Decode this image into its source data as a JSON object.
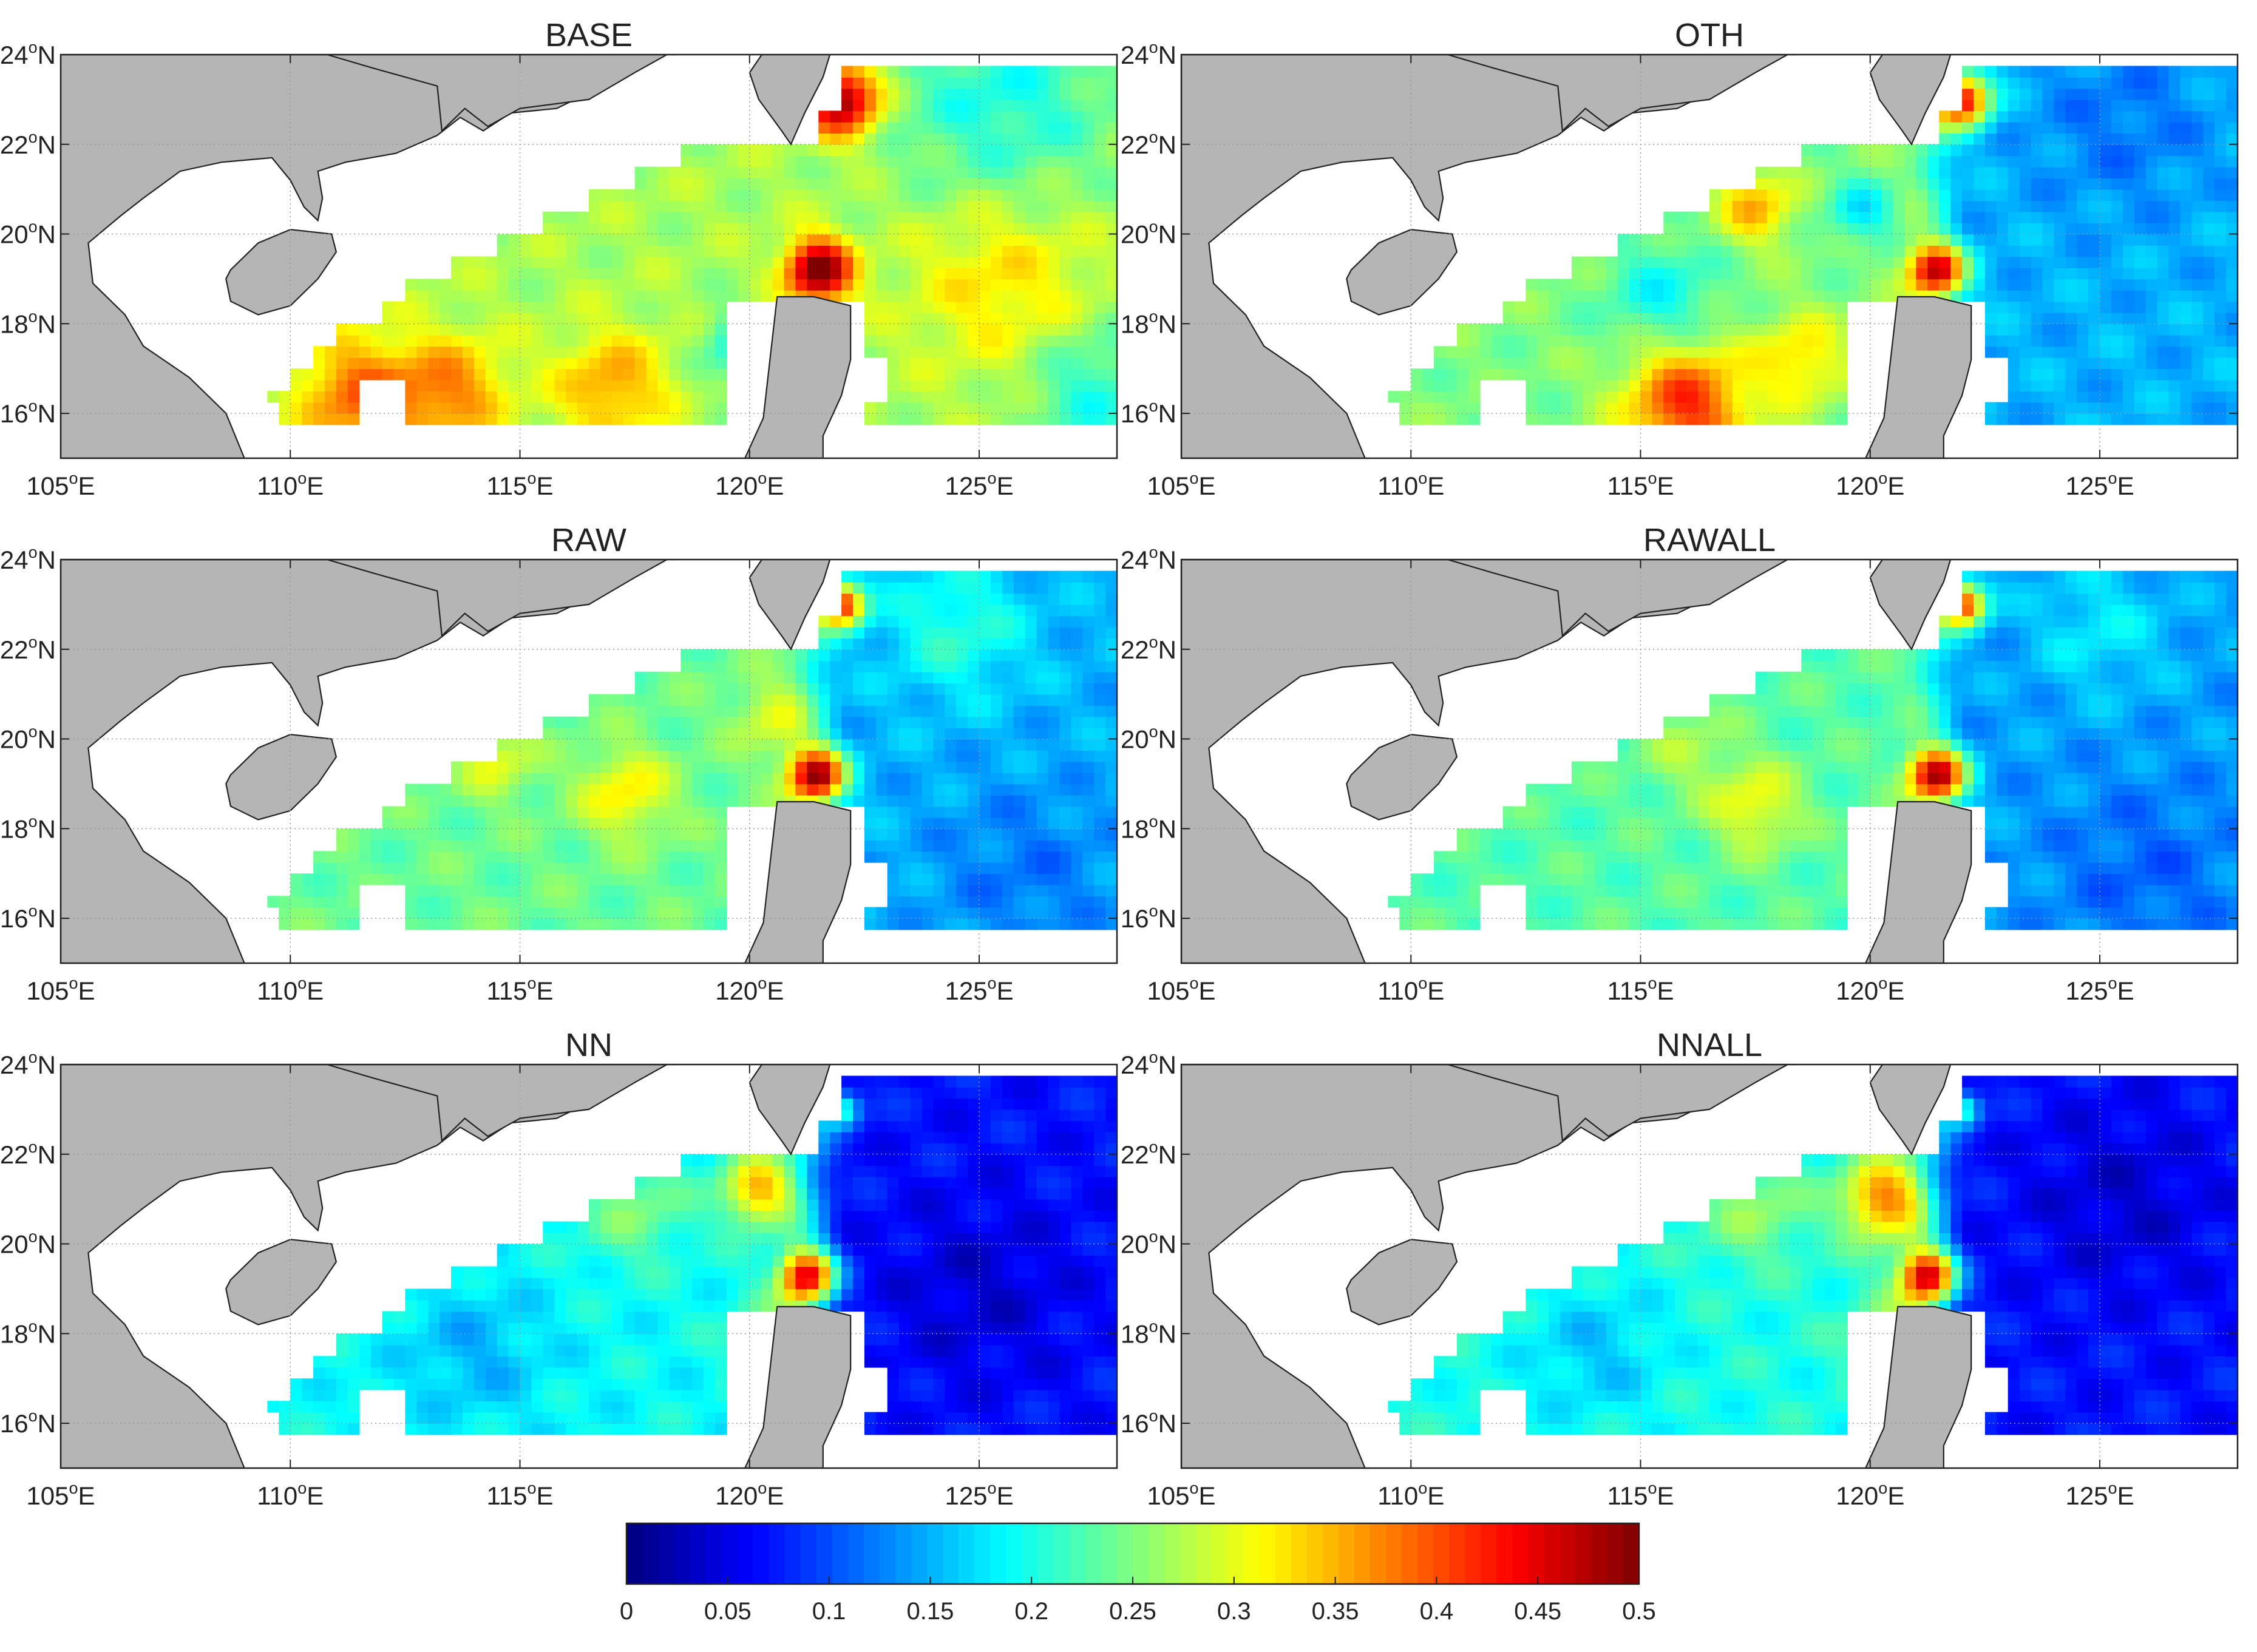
{
  "colors": {
    "land": "#b5b5b5",
    "coast": "#222222",
    "sea_nodata": "#ffffff",
    "grid": "#999999",
    "frame": "#222222"
  },
  "colormap": {
    "name": "jet",
    "min": 0,
    "max": 0.5,
    "ticks": [
      0,
      0.05,
      0.1,
      0.15,
      0.2,
      0.25,
      0.3,
      0.35,
      0.4,
      0.45,
      0.5
    ],
    "tick_labels": [
      "0",
      "0.05",
      "0.1",
      "0.15",
      "0.2",
      "0.25",
      "0.3",
      "0.35",
      "0.4",
      "0.45",
      "0.5"
    ]
  },
  "chart_data": [
    {
      "type": "heatmap",
      "title": "BASE",
      "xlim": [
        105,
        128
      ],
      "ylim": [
        15,
        24
      ],
      "xticks": [
        105,
        110,
        115,
        120,
        125
      ],
      "yticks": [
        16,
        18,
        20,
        22,
        24
      ],
      "xtick_labels": [
        [
          "105",
          "o",
          "E"
        ],
        [
          "110",
          "o",
          "E"
        ],
        [
          "115",
          "o",
          "E"
        ],
        [
          "120",
          "o",
          "E"
        ],
        [
          "125",
          "o",
          "E"
        ]
      ],
      "ytick_labels": [
        [
          "16",
          "o",
          "N"
        ],
        [
          "18",
          "o",
          "N"
        ],
        [
          "20",
          "o",
          "N"
        ],
        [
          "22",
          "o",
          "N"
        ],
        [
          "24",
          "o",
          "N"
        ]
      ],
      "grid": true,
      "field": {
        "base": 0.27,
        "east_base": 0.27,
        "blobs": [
          {
            "lon": 111.5,
            "lat": 16.4,
            "r": 1.3,
            "v": 0.12
          },
          {
            "lon": 113.5,
            "lat": 16.5,
            "r": 1.2,
            "v": 0.1
          },
          {
            "lon": 117.0,
            "lat": 16.6,
            "r": 1.2,
            "v": 0.09
          },
          {
            "lon": 121.5,
            "lat": 19.2,
            "r": 0.7,
            "v": 0.25
          },
          {
            "lon": 122.0,
            "lat": 23.0,
            "r": 0.8,
            "v": 0.23
          },
          {
            "lon": 125.5,
            "lat": 19.0,
            "r": 2.0,
            "v": 0.06
          },
          {
            "lon": 127.5,
            "lat": 16.5,
            "r": 1.5,
            "v": -0.07
          },
          {
            "lon": 125.5,
            "lat": 23.0,
            "r": 2.5,
            "v": -0.07
          },
          {
            "lon": 119.8,
            "lat": 17.5,
            "r": 0.8,
            "v": -0.08
          }
        ]
      }
    },
    {
      "type": "heatmap",
      "title": "OTH",
      "xlim": [
        105,
        128
      ],
      "ylim": [
        15,
        24
      ],
      "xticks": [
        105,
        110,
        115,
        120,
        125
      ],
      "yticks": [
        16,
        18,
        20,
        22,
        24
      ],
      "xtick_labels": [
        [
          "105",
          "o",
          "E"
        ],
        [
          "110",
          "o",
          "E"
        ],
        [
          "115",
          "o",
          "E"
        ],
        [
          "120",
          "o",
          "E"
        ],
        [
          "125",
          "o",
          "E"
        ]
      ],
      "ytick_labels": [
        [
          "16",
          "o",
          "N"
        ],
        [
          "18",
          "o",
          "N"
        ],
        [
          "20",
          "o",
          "N"
        ],
        [
          "22",
          "o",
          "N"
        ],
        [
          "24",
          "o",
          "N"
        ]
      ],
      "grid": true,
      "field": {
        "base": 0.25,
        "east_base": 0.15,
        "blobs": [
          {
            "lon": 116.0,
            "lat": 16.2,
            "r": 1.3,
            "v": 0.17
          },
          {
            "lon": 118.5,
            "lat": 17.2,
            "r": 1.0,
            "v": 0.08
          },
          {
            "lon": 117.5,
            "lat": 20.6,
            "r": 0.8,
            "v": 0.1
          },
          {
            "lon": 115.5,
            "lat": 18.6,
            "r": 1.2,
            "v": -0.06
          },
          {
            "lon": 121.5,
            "lat": 19.2,
            "r": 0.6,
            "v": 0.27
          },
          {
            "lon": 122.0,
            "lat": 23.0,
            "r": 0.6,
            "v": 0.3
          },
          {
            "lon": 119.8,
            "lat": 20.5,
            "r": 0.7,
            "v": -0.07
          },
          {
            "lon": 125.5,
            "lat": 22.5,
            "r": 2.0,
            "v": -0.03
          }
        ]
      }
    },
    {
      "type": "heatmap",
      "title": "RAW",
      "xlim": [
        105,
        128
      ],
      "ylim": [
        15,
        24
      ],
      "xticks": [
        105,
        110,
        115,
        120,
        125
      ],
      "yticks": [
        16,
        18,
        20,
        22,
        24
      ],
      "xtick_labels": [
        [
          "105",
          "o",
          "E"
        ],
        [
          "110",
          "o",
          "E"
        ],
        [
          "115",
          "o",
          "E"
        ],
        [
          "120",
          "o",
          "E"
        ],
        [
          "125",
          "o",
          "E"
        ]
      ],
      "ytick_labels": [
        [
          "16",
          "o",
          "N"
        ],
        [
          "18",
          "o",
          "N"
        ],
        [
          "20",
          "o",
          "N"
        ],
        [
          "22",
          "o",
          "N"
        ],
        [
          "24",
          "o",
          "N"
        ]
      ],
      "grid": true,
      "field": {
        "base": 0.24,
        "east_base": 0.15,
        "blobs": [
          {
            "lon": 117.3,
            "lat": 18.8,
            "r": 1.0,
            "v": 0.08
          },
          {
            "lon": 114.5,
            "lat": 19.5,
            "r": 0.8,
            "v": 0.06
          },
          {
            "lon": 120.5,
            "lat": 20.5,
            "r": 0.8,
            "v": 0.06
          },
          {
            "lon": 121.5,
            "lat": 19.2,
            "r": 0.6,
            "v": 0.3
          },
          {
            "lon": 122.0,
            "lat": 23.0,
            "r": 0.5,
            "v": 0.28
          },
          {
            "lon": 121.0,
            "lat": 17.0,
            "r": 0.5,
            "v": 0.18
          },
          {
            "lon": 124.5,
            "lat": 22.5,
            "r": 1.5,
            "v": 0.06
          },
          {
            "lon": 126.0,
            "lat": 17.0,
            "r": 2.0,
            "v": -0.03
          }
        ]
      }
    },
    {
      "type": "heatmap",
      "title": "RAWALL",
      "xlim": [
        105,
        128
      ],
      "ylim": [
        15,
        24
      ],
      "xticks": [
        105,
        110,
        115,
        120,
        125
      ],
      "yticks": [
        16,
        18,
        20,
        22,
        24
      ],
      "xtick_labels": [
        [
          "105",
          "o",
          "E"
        ],
        [
          "110",
          "o",
          "E"
        ],
        [
          "115",
          "o",
          "E"
        ],
        [
          "120",
          "o",
          "E"
        ],
        [
          "125",
          "o",
          "E"
        ]
      ],
      "ytick_labels": [
        [
          "16",
          "o",
          "N"
        ],
        [
          "18",
          "o",
          "N"
        ],
        [
          "20",
          "o",
          "N"
        ],
        [
          "22",
          "o",
          "N"
        ],
        [
          "24",
          "o",
          "N"
        ]
      ],
      "grid": true,
      "field": {
        "base": 0.23,
        "east_base": 0.14,
        "blobs": [
          {
            "lon": 117.5,
            "lat": 18.5,
            "r": 1.0,
            "v": 0.08
          },
          {
            "lon": 116.0,
            "lat": 19.8,
            "r": 1.0,
            "v": 0.04
          },
          {
            "lon": 121.5,
            "lat": 19.2,
            "r": 0.6,
            "v": 0.3
          },
          {
            "lon": 122.0,
            "lat": 23.0,
            "r": 0.5,
            "v": 0.28
          },
          {
            "lon": 121.0,
            "lat": 17.0,
            "r": 0.5,
            "v": 0.17
          },
          {
            "lon": 125.0,
            "lat": 22.5,
            "r": 1.5,
            "v": 0.04
          },
          {
            "lon": 126.0,
            "lat": 17.0,
            "r": 2.0,
            "v": -0.03
          }
        ]
      }
    },
    {
      "type": "heatmap",
      "title": "NN",
      "xlim": [
        105,
        128
      ],
      "ylim": [
        15,
        24
      ],
      "xticks": [
        105,
        110,
        115,
        120,
        125
      ],
      "yticks": [
        16,
        18,
        20,
        22,
        24
      ],
      "xtick_labels": [
        [
          "105",
          "o",
          "E"
        ],
        [
          "110",
          "o",
          "E"
        ],
        [
          "115",
          "o",
          "E"
        ],
        [
          "120",
          "o",
          "E"
        ],
        [
          "125",
          "o",
          "E"
        ]
      ],
      "ytick_labels": [
        [
          "16",
          "o",
          "N"
        ],
        [
          "18",
          "o",
          "N"
        ],
        [
          "20",
          "o",
          "N"
        ],
        [
          "22",
          "o",
          "N"
        ],
        [
          "24",
          "o",
          "N"
        ]
      ],
      "grid": true,
      "field": {
        "base": 0.19,
        "east_base": 0.07,
        "blobs": [
          {
            "lon": 114.0,
            "lat": 17.6,
            "r": 1.5,
            "v": -0.04
          },
          {
            "lon": 117.5,
            "lat": 20.8,
            "r": 1.2,
            "v": 0.06
          },
          {
            "lon": 120.2,
            "lat": 21.2,
            "r": 0.8,
            "v": 0.16
          },
          {
            "lon": 121.3,
            "lat": 19.3,
            "r": 0.6,
            "v": 0.3
          },
          {
            "lon": 122.0,
            "lat": 23.0,
            "r": 0.4,
            "v": 0.15
          },
          {
            "lon": 120.5,
            "lat": 18.0,
            "r": 1.0,
            "v": 0.05
          },
          {
            "lon": 125.0,
            "lat": 19.0,
            "r": 2.0,
            "v": -0.03
          }
        ]
      }
    },
    {
      "type": "heatmap",
      "title": "NNALL",
      "xlim": [
        105,
        128
      ],
      "ylim": [
        15,
        24
      ],
      "xticks": [
        105,
        110,
        115,
        120,
        125
      ],
      "yticks": [
        16,
        18,
        20,
        22,
        24
      ],
      "xtick_labels": [
        [
          "105",
          "o",
          "E"
        ],
        [
          "110",
          "o",
          "E"
        ],
        [
          "115",
          "o",
          "E"
        ],
        [
          "120",
          "o",
          "E"
        ],
        [
          "125",
          "o",
          "E"
        ]
      ],
      "ytick_labels": [
        [
          "16",
          "o",
          "N"
        ],
        [
          "18",
          "o",
          "N"
        ],
        [
          "20",
          "o",
          "N"
        ],
        [
          "22",
          "o",
          "N"
        ],
        [
          "24",
          "o",
          "N"
        ]
      ],
      "grid": true,
      "field": {
        "base": 0.2,
        "east_base": 0.07,
        "blobs": [
          {
            "lon": 114.0,
            "lat": 17.6,
            "r": 1.5,
            "v": -0.04
          },
          {
            "lon": 117.5,
            "lat": 20.8,
            "r": 1.2,
            "v": 0.06
          },
          {
            "lon": 120.3,
            "lat": 21.0,
            "r": 0.9,
            "v": 0.18
          },
          {
            "lon": 121.3,
            "lat": 19.3,
            "r": 0.6,
            "v": 0.3
          },
          {
            "lon": 122.0,
            "lat": 23.0,
            "r": 0.4,
            "v": 0.15
          },
          {
            "lon": 120.5,
            "lat": 18.0,
            "r": 1.0,
            "v": 0.06
          },
          {
            "lon": 125.5,
            "lat": 21.0,
            "r": 2.0,
            "v": -0.03
          }
        ]
      }
    }
  ]
}
